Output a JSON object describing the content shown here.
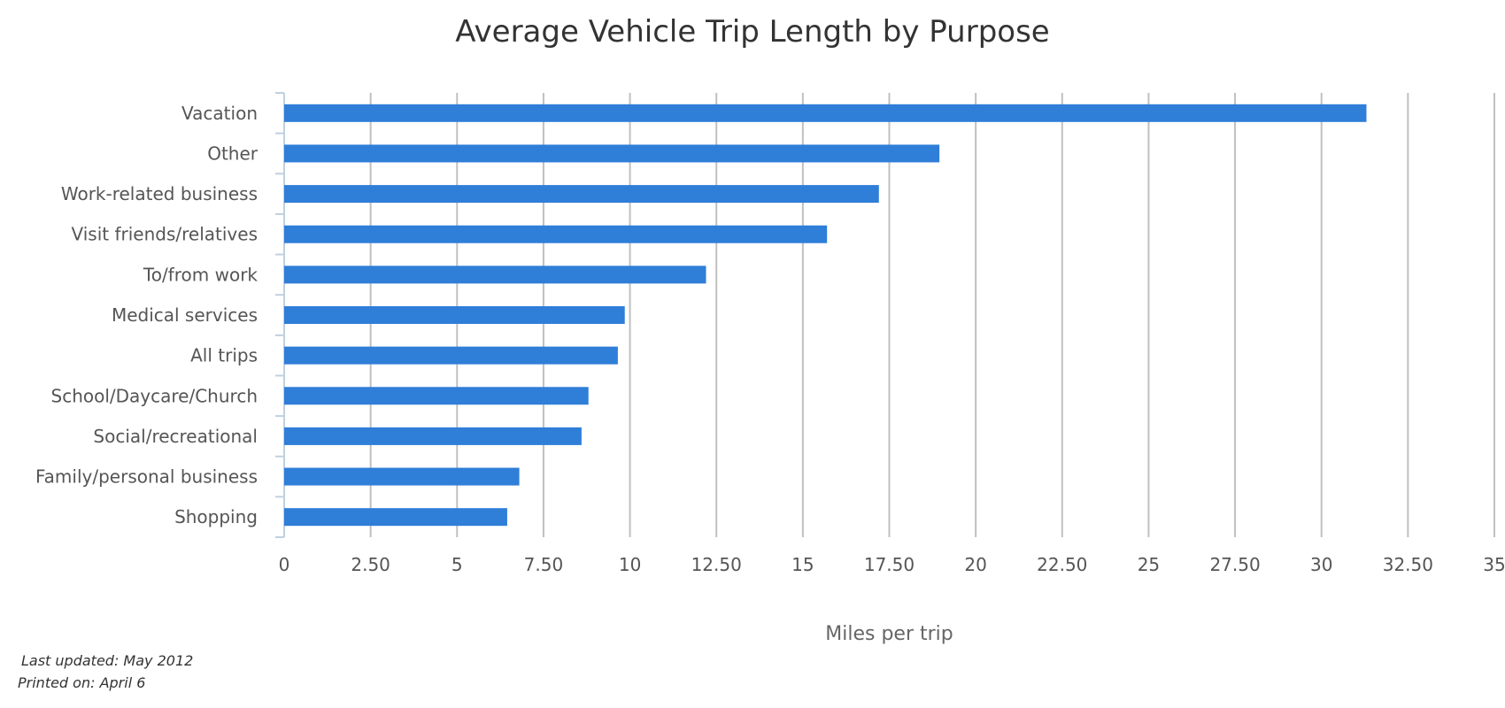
{
  "chart_data": {
    "type": "bar",
    "orientation": "horizontal",
    "title": "Average Vehicle Trip Length by Purpose",
    "xlabel": "Miles per trip",
    "ylabel": "",
    "categories": [
      "Vacation",
      "Other",
      "Work-related business",
      "Visit friends/relatives",
      "To/from work",
      "Medical services",
      "All trips",
      "School/Daycare/Church",
      "Social/recreational",
      "Family/personal business",
      "Shopping"
    ],
    "values": [
      31.3,
      18.95,
      17.2,
      15.7,
      12.2,
      9.85,
      9.65,
      8.8,
      8.6,
      6.8,
      6.45
    ],
    "xlim": [
      0,
      35
    ],
    "ticks": [
      "0",
      "2.50",
      "5",
      "7.50",
      "10",
      "12.50",
      "15",
      "17.50",
      "20",
      "22.50",
      "25",
      "27.50",
      "30",
      "32.50",
      "35"
    ],
    "grid": true,
    "bar_color": "#2f7ed8"
  },
  "footer": {
    "last_updated": "Last updated: May 2012",
    "printed_on": "Printed on: April 6"
  }
}
